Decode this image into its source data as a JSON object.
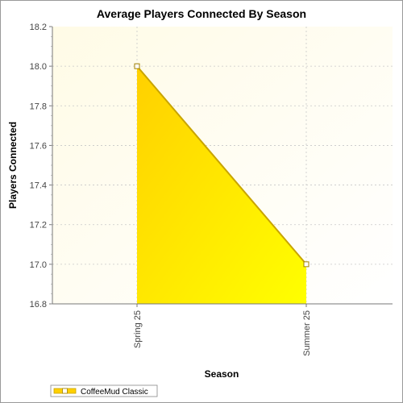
{
  "chart_data": {
    "type": "area",
    "title": "Average Players Connected By Season",
    "xlabel": "Season",
    "ylabel": "Players Connected",
    "categories": [
      "Spring 25",
      "Summer 25"
    ],
    "series": [
      {
        "name": "CoffeeMud Classic",
        "values": [
          18.0,
          17.0
        ]
      }
    ],
    "ylim": [
      16.8,
      18.2
    ],
    "yticks": [
      "16.8",
      "17.0",
      "17.2",
      "17.4",
      "17.6",
      "17.8",
      "18.0",
      "18.2"
    ],
    "grid": true,
    "legend": "bottom-left",
    "colors": {
      "plot_bg_start": "#fffbe6",
      "plot_bg_end": "#ffffff",
      "fill_top": "#ffd000",
      "fill_bottom": "#ffff00",
      "line": "#c8a400",
      "marker_fill": "#ffffff",
      "marker_stroke": "#a08000"
    }
  }
}
